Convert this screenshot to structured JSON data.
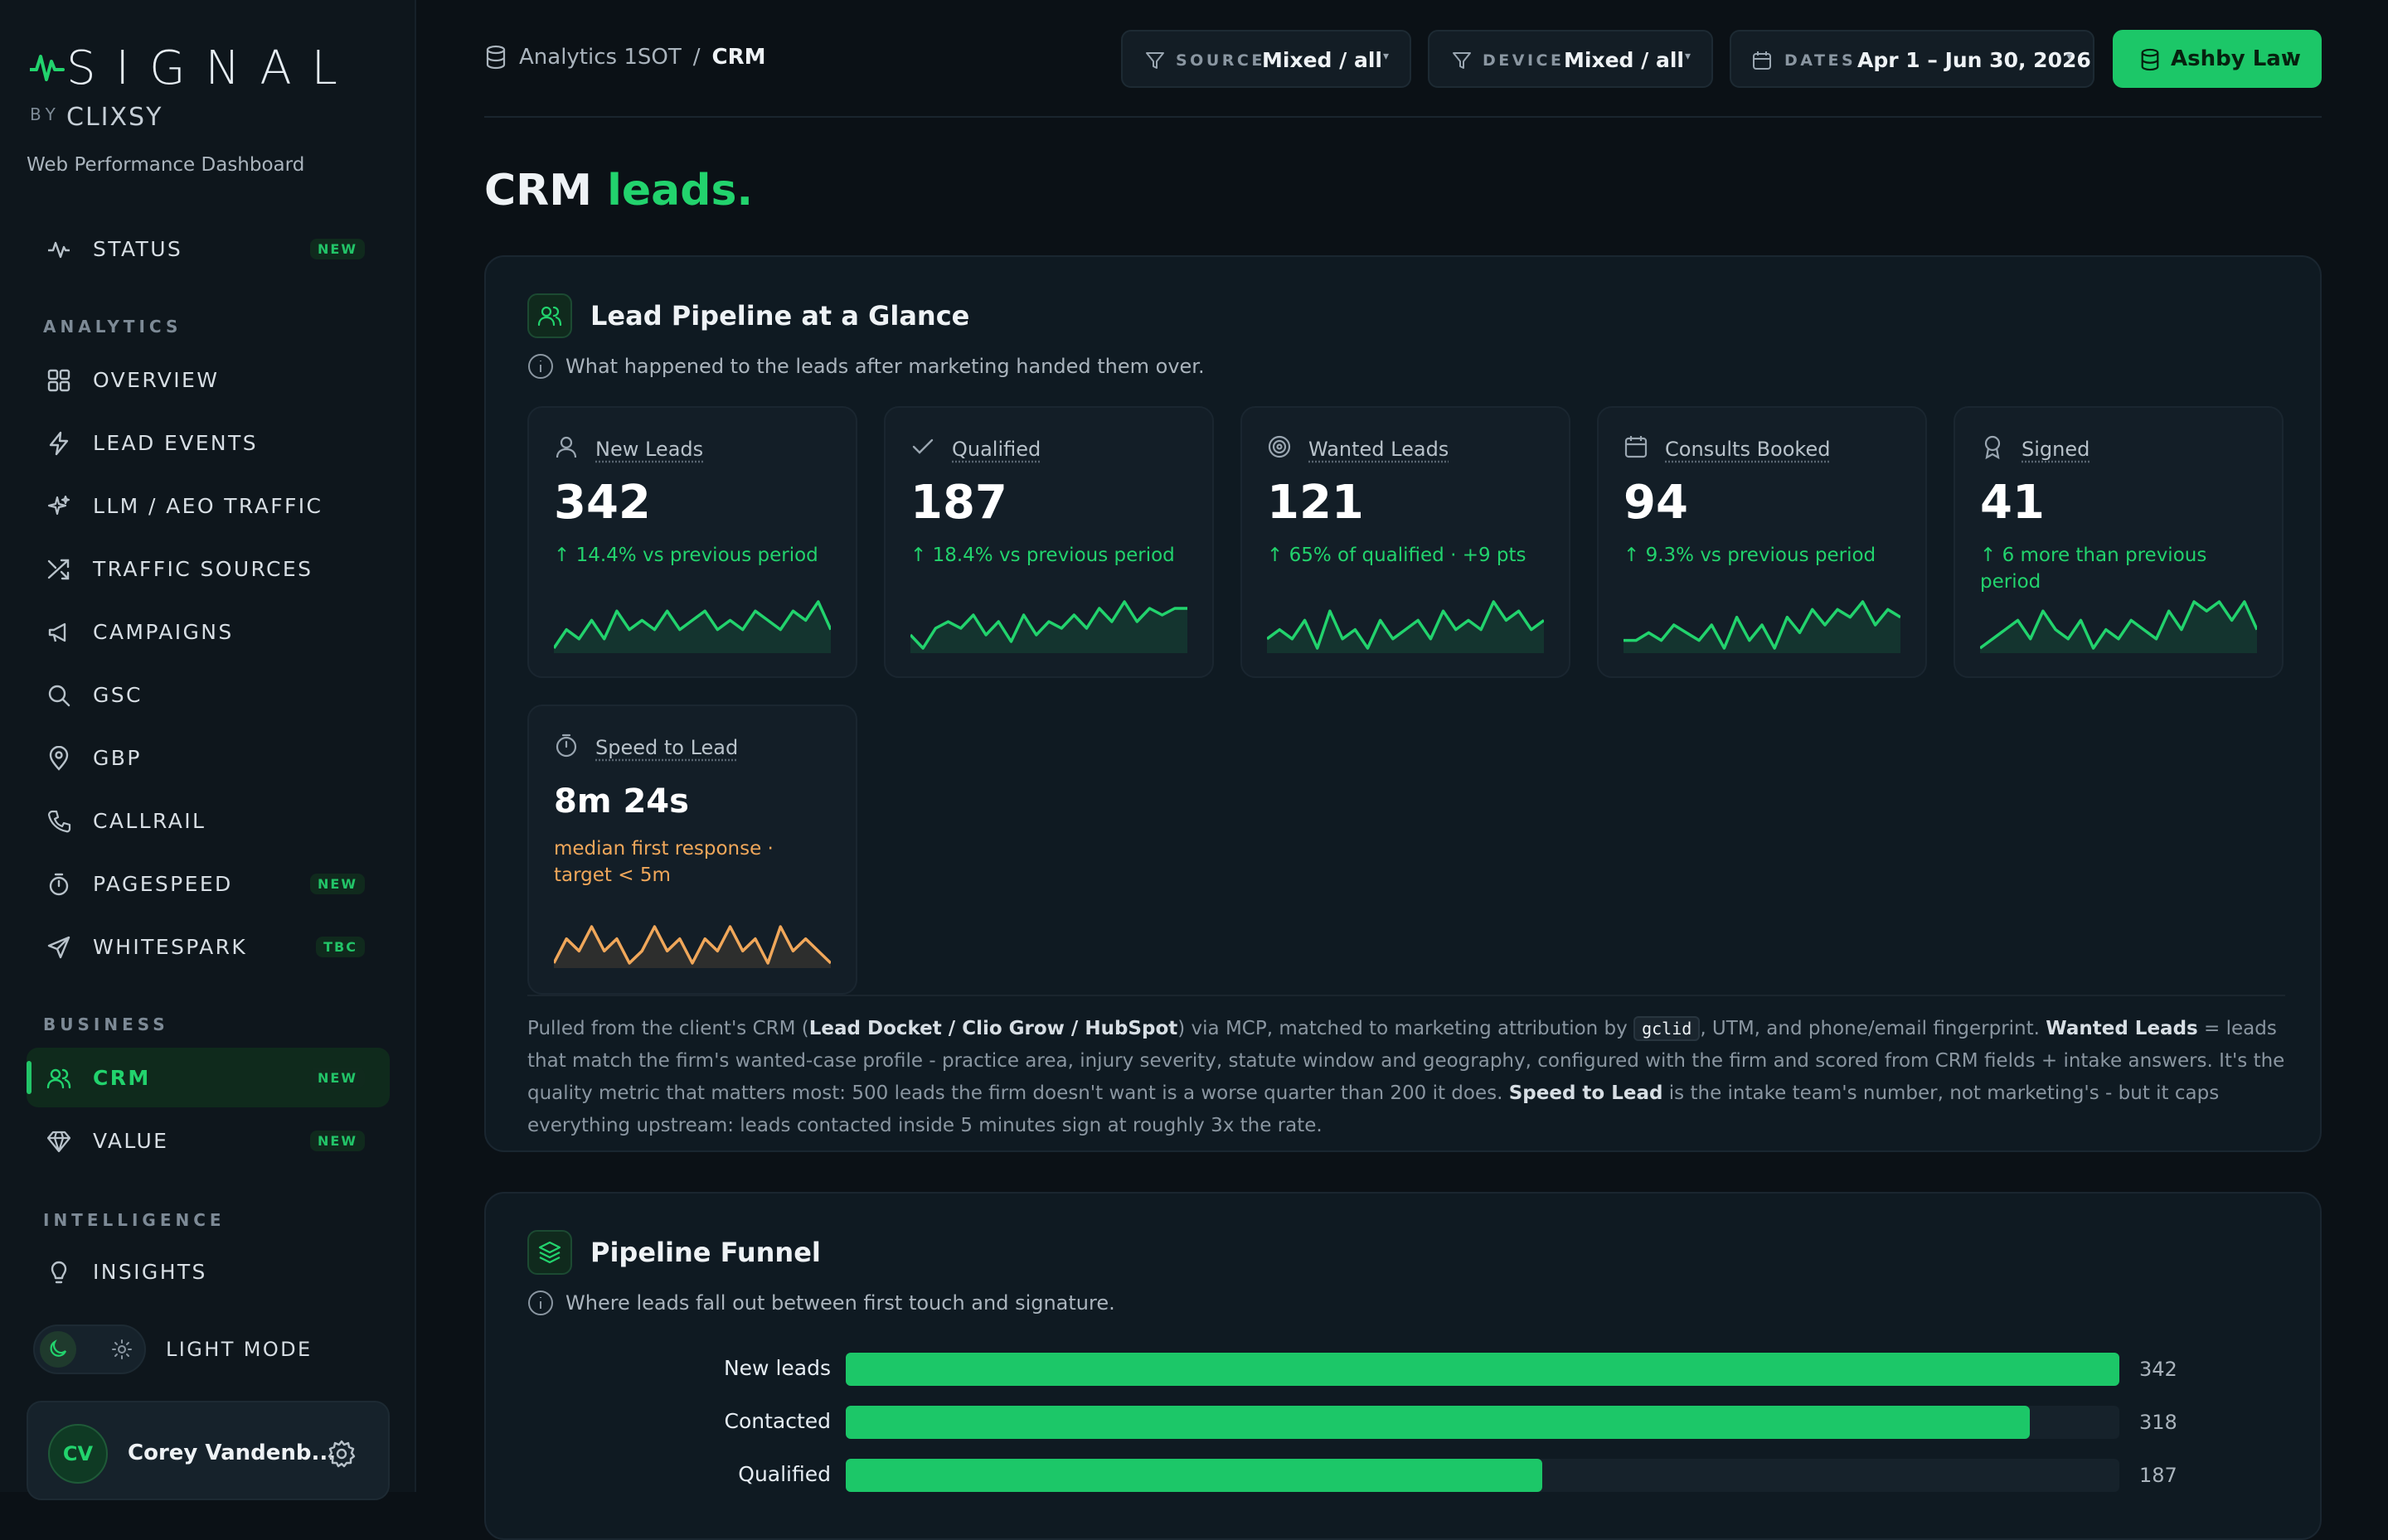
{
  "app": {
    "brand": "SIGNAL",
    "by": "BY",
    "maker": "CLIXSY",
    "tagline": "Web Performance Dashboard"
  },
  "sidebar": {
    "status": {
      "label": "STATUS",
      "badge": "NEW"
    },
    "sections": {
      "analytics": "ANALYTICS",
      "business": "BUSINESS",
      "intelligence": "INTELLIGENCE"
    },
    "items": [
      {
        "label": "OVERVIEW",
        "icon": "grid-icon"
      },
      {
        "label": "LEAD EVENTS",
        "icon": "bolt-icon"
      },
      {
        "label": "LLM / AEO TRAFFIC",
        "icon": "sparkle-icon"
      },
      {
        "label": "TRAFFIC SOURCES",
        "icon": "shuffle-icon"
      },
      {
        "label": "CAMPAIGNS",
        "icon": "megaphone-icon"
      },
      {
        "label": "GSC",
        "icon": "search-icon"
      },
      {
        "label": "GBP",
        "icon": "map-pin-icon"
      },
      {
        "label": "CALLRAIL",
        "icon": "phone-icon"
      },
      {
        "label": "PAGESPEED",
        "icon": "timer-icon",
        "badge": "NEW"
      },
      {
        "label": "WHITESPARK",
        "icon": "send-icon",
        "badge": "TBC"
      }
    ],
    "business": [
      {
        "label": "CRM",
        "icon": "users-icon",
        "badge": "NEW"
      },
      {
        "label": "VALUE",
        "icon": "diamond-icon",
        "badge": "NEW"
      }
    ],
    "intelligence": [
      {
        "label": "INSIGHTS",
        "icon": "lightbulb-icon"
      }
    ],
    "theme_toggle": "LIGHT MODE",
    "user": {
      "initials": "CV",
      "name": "Corey Vandenb..."
    }
  },
  "topbar": {
    "breadcrumb": {
      "root": "Analytics 1SOT",
      "sep": "/",
      "current": "CRM"
    },
    "filters": [
      {
        "key": "SOURCE",
        "value": "Mixed / all"
      },
      {
        "key": "DEVICE",
        "value": "Mixed / all"
      },
      {
        "key": "DATES",
        "value": "Apr 1 – Jun 30, 2026"
      }
    ],
    "client": "Ashby Law"
  },
  "page": {
    "title_a": "CRM",
    "title_b": "leads."
  },
  "pipeline": {
    "title": "Lead Pipeline at a Glance",
    "subtitle": "What happened to the leads after marketing handed them over.",
    "kpis": [
      {
        "label": "New Leads",
        "value": "342",
        "delta": "↑ 14.4% vs previous period",
        "icon": "user-icon",
        "trend": [
          3,
          5,
          4,
          6,
          4,
          7,
          5,
          6,
          5,
          7,
          5,
          6,
          7,
          5,
          6,
          5,
          7,
          6,
          5,
          7,
          6,
          8,
          5
        ]
      },
      {
        "label": "Qualified",
        "value": "187",
        "delta": "↑ 18.4% vs previous period",
        "icon": "check-icon",
        "trend": [
          4,
          2,
          5,
          6,
          5,
          7,
          4,
          6,
          3,
          7,
          4,
          6,
          5,
          7,
          5,
          8,
          6,
          9,
          6,
          8,
          7,
          8,
          8
        ]
      },
      {
        "label": "Wanted Leads",
        "value": "121",
        "delta": "↑ 65% of qualified · +9 pts",
        "icon": "target-icon",
        "trend": [
          4,
          5,
          4,
          6,
          3,
          7,
          4,
          5,
          3,
          6,
          4,
          5,
          6,
          4,
          7,
          5,
          6,
          5,
          8,
          6,
          7,
          5,
          6
        ]
      },
      {
        "label": "Consults Booked",
        "value": "94",
        "delta": "↑ 9.3% vs previous period",
        "icon": "calendar-icon",
        "trend": [
          4,
          4,
          5,
          4,
          6,
          5,
          4,
          6,
          3,
          7,
          4,
          6,
          3,
          7,
          5,
          8,
          6,
          8,
          7,
          9,
          6,
          8,
          7
        ]
      },
      {
        "label": "Signed",
        "value": "41",
        "delta": "↑ 6 more than previous period",
        "icon": "award-icon",
        "trend": [
          3,
          4,
          5,
          6,
          4,
          7,
          5,
          4,
          6,
          3,
          5,
          4,
          6,
          5,
          4,
          7,
          5,
          8,
          7,
          8,
          6,
          8,
          5
        ]
      }
    ],
    "speed": {
      "label": "Speed to Lead",
      "value": "8m 24s",
      "delta": "median first response · target < 5m",
      "icon": "stopwatch-icon",
      "trend": [
        5,
        7,
        6,
        8,
        6,
        7,
        5,
        6,
        8,
        6,
        7,
        5,
        7,
        6,
        8,
        6,
        7,
        5,
        8,
        6,
        7,
        6,
        5
      ]
    },
    "footnote": {
      "p1": "Pulled from the client's CRM (",
      "b1": "Lead Docket / Clio Grow / HubSpot",
      "p2": ") via MCP, matched to marketing attribution by ",
      "code": "gclid",
      "p3": ", UTM, and phone/email fingerprint. ",
      "b2": "Wanted Leads",
      "p4": " = leads that match the firm's wanted-case profile - practice area, injury severity, statute window and geography, configured with the firm and scored from CRM fields + intake answers. It's the quality metric that matters most: 500 leads the firm doesn't want is a worse quarter than 200 it does. ",
      "b3": "Speed to Lead",
      "p5": " is the intake team's number, not marketing's - but it caps everything upstream: leads contacted inside 5 minutes sign at roughly 3x the rate."
    }
  },
  "funnel": {
    "title": "Pipeline Funnel",
    "subtitle": "Where leads fall out between first touch and signature.",
    "max": 342,
    "rows": [
      {
        "label": "New leads",
        "value": 342
      },
      {
        "label": "Contacted",
        "value": 318
      },
      {
        "label": "Qualified",
        "value": 187
      }
    ]
  },
  "colors": {
    "accent": "#22d36d",
    "bar": "#1cc768",
    "warn": "#f0a75a",
    "bg": "#0b1116"
  }
}
